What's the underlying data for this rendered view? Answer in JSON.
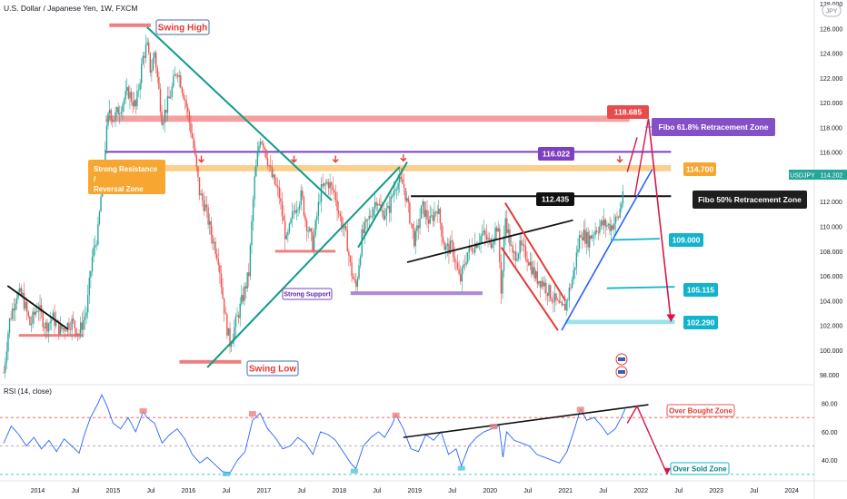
{
  "header": {
    "title": "U.S. Dollar / Japanese Yen, 1W, FXCM",
    "currency": "JPY",
    "symbol": "USDJPY",
    "last_price": "114.202",
    "rsi_label": "RSI (14, close)"
  },
  "colors": {
    "up": "#26a69a",
    "down": "#ef5350",
    "rsi_line": "#2962ff",
    "trend_green": "#119c86",
    "purple": "#7e3fc0",
    "orange": "#f7a731",
    "red_zone": "#f08080",
    "cyan": "#12b3cc",
    "crimson": "#d6164a",
    "violet_box": "#8450c8"
  },
  "chart_data": [
    {
      "type": "candlestick",
      "title": "U.S. Dollar / Japanese Yen, 1W, FXCM",
      "ylim": [
        97.5,
        128
      ],
      "y_ticks": [
        "98.000",
        "100.000",
        "102.000",
        "104.000",
        "106.000",
        "108.000",
        "110.000",
        "112.000",
        "114.000",
        "116.000",
        "118.000",
        "120.000",
        "122.000",
        "124.000",
        "126.000",
        "128.000"
      ],
      "x_ticks": [
        "2014",
        "Jul",
        "2015",
        "Jul",
        "2016",
        "Jul",
        "2017",
        "Jul",
        "2018",
        "Jul",
        "2019",
        "Jul",
        "2020",
        "Jul",
        "2021",
        "Jul",
        "2022",
        "Jul",
        "2023",
        "Jul",
        "2024"
      ],
      "x_tick_dates": [
        2014.0,
        2014.5,
        2015.0,
        2015.5,
        2016.0,
        2016.5,
        2017.0,
        2017.5,
        2018.0,
        2018.5,
        2019.0,
        2019.5,
        2020.0,
        2020.5,
        2021.0,
        2021.5,
        2022.0,
        2022.5,
        2023.0,
        2023.5,
        2024.0
      ],
      "xlim": [
        2013.5,
        2024.3
      ],
      "price_path": [
        [
          2013.55,
          98.2
        ],
        [
          2013.62,
          102.2
        ],
        [
          2013.72,
          104.6
        ],
        [
          2013.8,
          104.3
        ],
        [
          2013.9,
          102.0
        ],
        [
          2014.0,
          103.6
        ],
        [
          2014.1,
          101.9
        ],
        [
          2014.2,
          102.6
        ],
        [
          2014.3,
          101.6
        ],
        [
          2014.45,
          102.3
        ],
        [
          2014.55,
          101.4
        ],
        [
          2014.65,
          103.2
        ],
        [
          2014.72,
          107.4
        ],
        [
          2014.8,
          109.6
        ],
        [
          2014.9,
          116.8
        ],
        [
          2014.95,
          119.6
        ],
        [
          2015.0,
          118.6
        ],
        [
          2015.1,
          119.7
        ],
        [
          2015.2,
          120.9
        ],
        [
          2015.3,
          119.6
        ],
        [
          2015.4,
          123.8
        ],
        [
          2015.45,
          124.6
        ],
        [
          2015.5,
          122.4
        ],
        [
          2015.55,
          124.1
        ],
        [
          2015.65,
          118.6
        ],
        [
          2015.75,
          120.4
        ],
        [
          2015.85,
          122.8
        ],
        [
          2015.95,
          120.4
        ],
        [
          2016.05,
          117.2
        ],
        [
          2016.15,
          112.6
        ],
        [
          2016.22,
          111.6
        ],
        [
          2016.3,
          109.4
        ],
        [
          2016.4,
          107.4
        ],
        [
          2016.45,
          104.5
        ],
        [
          2016.5,
          102.1
        ],
        [
          2016.55,
          100.6
        ],
        [
          2016.6,
          101.6
        ],
        [
          2016.7,
          103.8
        ],
        [
          2016.8,
          106.2
        ],
        [
          2016.87,
          113.4
        ],
        [
          2016.95,
          117.3
        ],
        [
          2017.0,
          116.7
        ],
        [
          2017.1,
          114.1
        ],
        [
          2017.2,
          112.6
        ],
        [
          2017.3,
          108.7
        ],
        [
          2017.4,
          111.4
        ],
        [
          2017.5,
          112.5
        ],
        [
          2017.55,
          110.6
        ],
        [
          2017.65,
          108.5
        ],
        [
          2017.75,
          112.8
        ],
        [
          2017.85,
          113.6
        ],
        [
          2017.95,
          112.5
        ],
        [
          2018.0,
          110.9
        ],
        [
          2018.1,
          108.9
        ],
        [
          2018.15,
          106.6
        ],
        [
          2018.22,
          104.9
        ],
        [
          2018.3,
          109.2
        ],
        [
          2018.4,
          110.7
        ],
        [
          2018.5,
          112.4
        ],
        [
          2018.55,
          111.1
        ],
        [
          2018.65,
          111.2
        ],
        [
          2018.75,
          113.6
        ],
        [
          2018.85,
          113.4
        ],
        [
          2018.95,
          110.3
        ],
        [
          2019.0,
          108.7
        ],
        [
          2019.1,
          111.6
        ],
        [
          2019.2,
          110.3
        ],
        [
          2019.3,
          111.6
        ],
        [
          2019.4,
          108.2
        ],
        [
          2019.5,
          108.3
        ],
        [
          2019.6,
          105.5
        ],
        [
          2019.7,
          107.9
        ],
        [
          2019.8,
          108.6
        ],
        [
          2019.9,
          109.4
        ],
        [
          2020.0,
          108.6
        ],
        [
          2020.1,
          110.2
        ],
        [
          2020.15,
          104.5
        ],
        [
          2020.2,
          110.8
        ],
        [
          2020.3,
          107.5
        ],
        [
          2020.4,
          108.3
        ],
        [
          2020.5,
          107.5
        ],
        [
          2020.6,
          105.9
        ],
        [
          2020.7,
          105.5
        ],
        [
          2020.8,
          104.5
        ],
        [
          2020.95,
          103.2
        ],
        [
          2021.0,
          103.6
        ],
        [
          2021.1,
          106.0
        ],
        [
          2021.2,
          109.6
        ],
        [
          2021.3,
          108.9
        ],
        [
          2021.4,
          109.8
        ],
        [
          2021.5,
          110.2
        ],
        [
          2021.6,
          110.0
        ],
        [
          2021.7,
          110.7
        ],
        [
          2021.75,
          112.2
        ],
        [
          2021.78,
          114.2
        ]
      ]
    },
    {
      "type": "line",
      "title": "RSI (14, close)",
      "ylim": [
        28,
        88
      ],
      "y_ticks": [
        "40.00",
        "60.00",
        "80.00"
      ],
      "y_tick_values": [
        40,
        60,
        80
      ],
      "levels": [
        70,
        50,
        30
      ],
      "series": [
        {
          "values": [
            [
              2013.55,
              52
            ],
            [
              2013.65,
              64
            ],
            [
              2013.75,
              58
            ],
            [
              2013.85,
              50
            ],
            [
              2013.95,
              56
            ],
            [
              2014.05,
              48
            ],
            [
              2014.15,
              54
            ],
            [
              2014.25,
              46
            ],
            [
              2014.35,
              55
            ],
            [
              2014.45,
              50
            ],
            [
              2014.55,
              45
            ],
            [
              2014.62,
              58
            ],
            [
              2014.7,
              70
            ],
            [
              2014.8,
              80
            ],
            [
              2014.85,
              86
            ],
            [
              2014.92,
              78
            ],
            [
              2015.0,
              66
            ],
            [
              2015.1,
              62
            ],
            [
              2015.2,
              70
            ],
            [
              2015.3,
              60
            ],
            [
              2015.4,
              74
            ],
            [
              2015.45,
              70
            ],
            [
              2015.55,
              66
            ],
            [
              2015.65,
              52
            ],
            [
              2015.75,
              58
            ],
            [
              2015.85,
              62
            ],
            [
              2015.95,
              55
            ],
            [
              2016.05,
              44
            ],
            [
              2016.15,
              38
            ],
            [
              2016.25,
              42
            ],
            [
              2016.35,
              37
            ],
            [
              2016.45,
              32
            ],
            [
              2016.55,
              31
            ],
            [
              2016.65,
              40
            ],
            [
              2016.75,
              46
            ],
            [
              2016.85,
              68
            ],
            [
              2016.95,
              73
            ],
            [
              2017.05,
              62
            ],
            [
              2017.15,
              56
            ],
            [
              2017.25,
              48
            ],
            [
              2017.35,
              50
            ],
            [
              2017.45,
              56
            ],
            [
              2017.55,
              52
            ],
            [
              2017.65,
              44
            ],
            [
              2017.75,
              60
            ],
            [
              2017.85,
              58
            ],
            [
              2017.95,
              54
            ],
            [
              2018.05,
              46
            ],
            [
              2018.15,
              38
            ],
            [
              2018.22,
              34
            ],
            [
              2018.32,
              50
            ],
            [
              2018.42,
              56
            ],
            [
              2018.52,
              60
            ],
            [
              2018.6,
              56
            ],
            [
              2018.7,
              65
            ],
            [
              2018.75,
              72
            ],
            [
              2018.85,
              62
            ],
            [
              2018.95,
              48
            ],
            [
              2019.05,
              46
            ],
            [
              2019.15,
              58
            ],
            [
              2019.25,
              54
            ],
            [
              2019.35,
              60
            ],
            [
              2019.45,
              44
            ],
            [
              2019.55,
              48
            ],
            [
              2019.62,
              36
            ],
            [
              2019.72,
              50
            ],
            [
              2019.82,
              56
            ],
            [
              2019.92,
              60
            ],
            [
              2020.02,
              62
            ],
            [
              2020.12,
              64
            ],
            [
              2020.17,
              42
            ],
            [
              2020.22,
              60
            ],
            [
              2020.32,
              54
            ],
            [
              2020.42,
              52
            ],
            [
              2020.52,
              50
            ],
            [
              2020.62,
              44
            ],
            [
              2020.72,
              42
            ],
            [
              2020.82,
              40
            ],
            [
              2020.92,
              38
            ],
            [
              2021.02,
              46
            ],
            [
              2021.12,
              62
            ],
            [
              2021.2,
              76
            ],
            [
              2021.28,
              68
            ],
            [
              2021.38,
              70
            ],
            [
              2021.48,
              64
            ],
            [
              2021.56,
              58
            ],
            [
              2021.66,
              62
            ],
            [
              2021.74,
              70
            ],
            [
              2021.79,
              76
            ]
          ]
        }
      ]
    }
  ],
  "annotations": {
    "swing_high": "Swing High",
    "swing_low": "Swing Low",
    "strong_resistance": "Strong Resistance\n/\nReversal Zone",
    "strong_support": "Strong Support",
    "fibo_618": "Fibo 61.8% Retracement Zone",
    "fibo_50": "Fibo 50% Retracement Zone",
    "over_bought": "Over Bought Zone",
    "over_sold": "Over Sold Zone",
    "levels": [
      {
        "label": "118.685",
        "price": 118.685,
        "color": "#e84b4b"
      },
      {
        "label": "116.022",
        "price": 116.022,
        "color": "#7e3fc0"
      },
      {
        "label": "114.700",
        "price": 114.7,
        "color": "#f7a731"
      },
      {
        "label": "112.435",
        "price": 112.435,
        "color": "#111111"
      },
      {
        "label": "109.000",
        "price": 109.0,
        "color": "#12b3cc"
      },
      {
        "label": "105.115",
        "price": 105.115,
        "color": "#12b3cc"
      },
      {
        "label": "102.290",
        "price": 102.29,
        "color": "#12b3cc"
      }
    ]
  }
}
